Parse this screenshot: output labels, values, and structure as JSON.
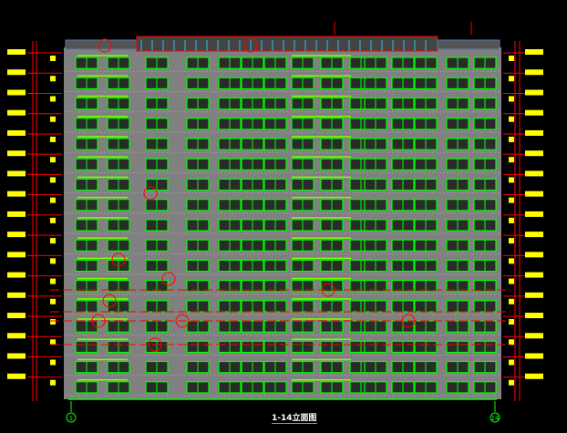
{
  "drawing": {
    "title": "1-14立面图",
    "axis_left": "1",
    "axis_right": "14",
    "floors": 17,
    "colors": {
      "background": "#000000",
      "facade": "#808080",
      "window_frame": "#00ff00",
      "dimension": "#ff0000",
      "text": "#ffff00",
      "roof_hatch": "#5a7ab0"
    }
  }
}
